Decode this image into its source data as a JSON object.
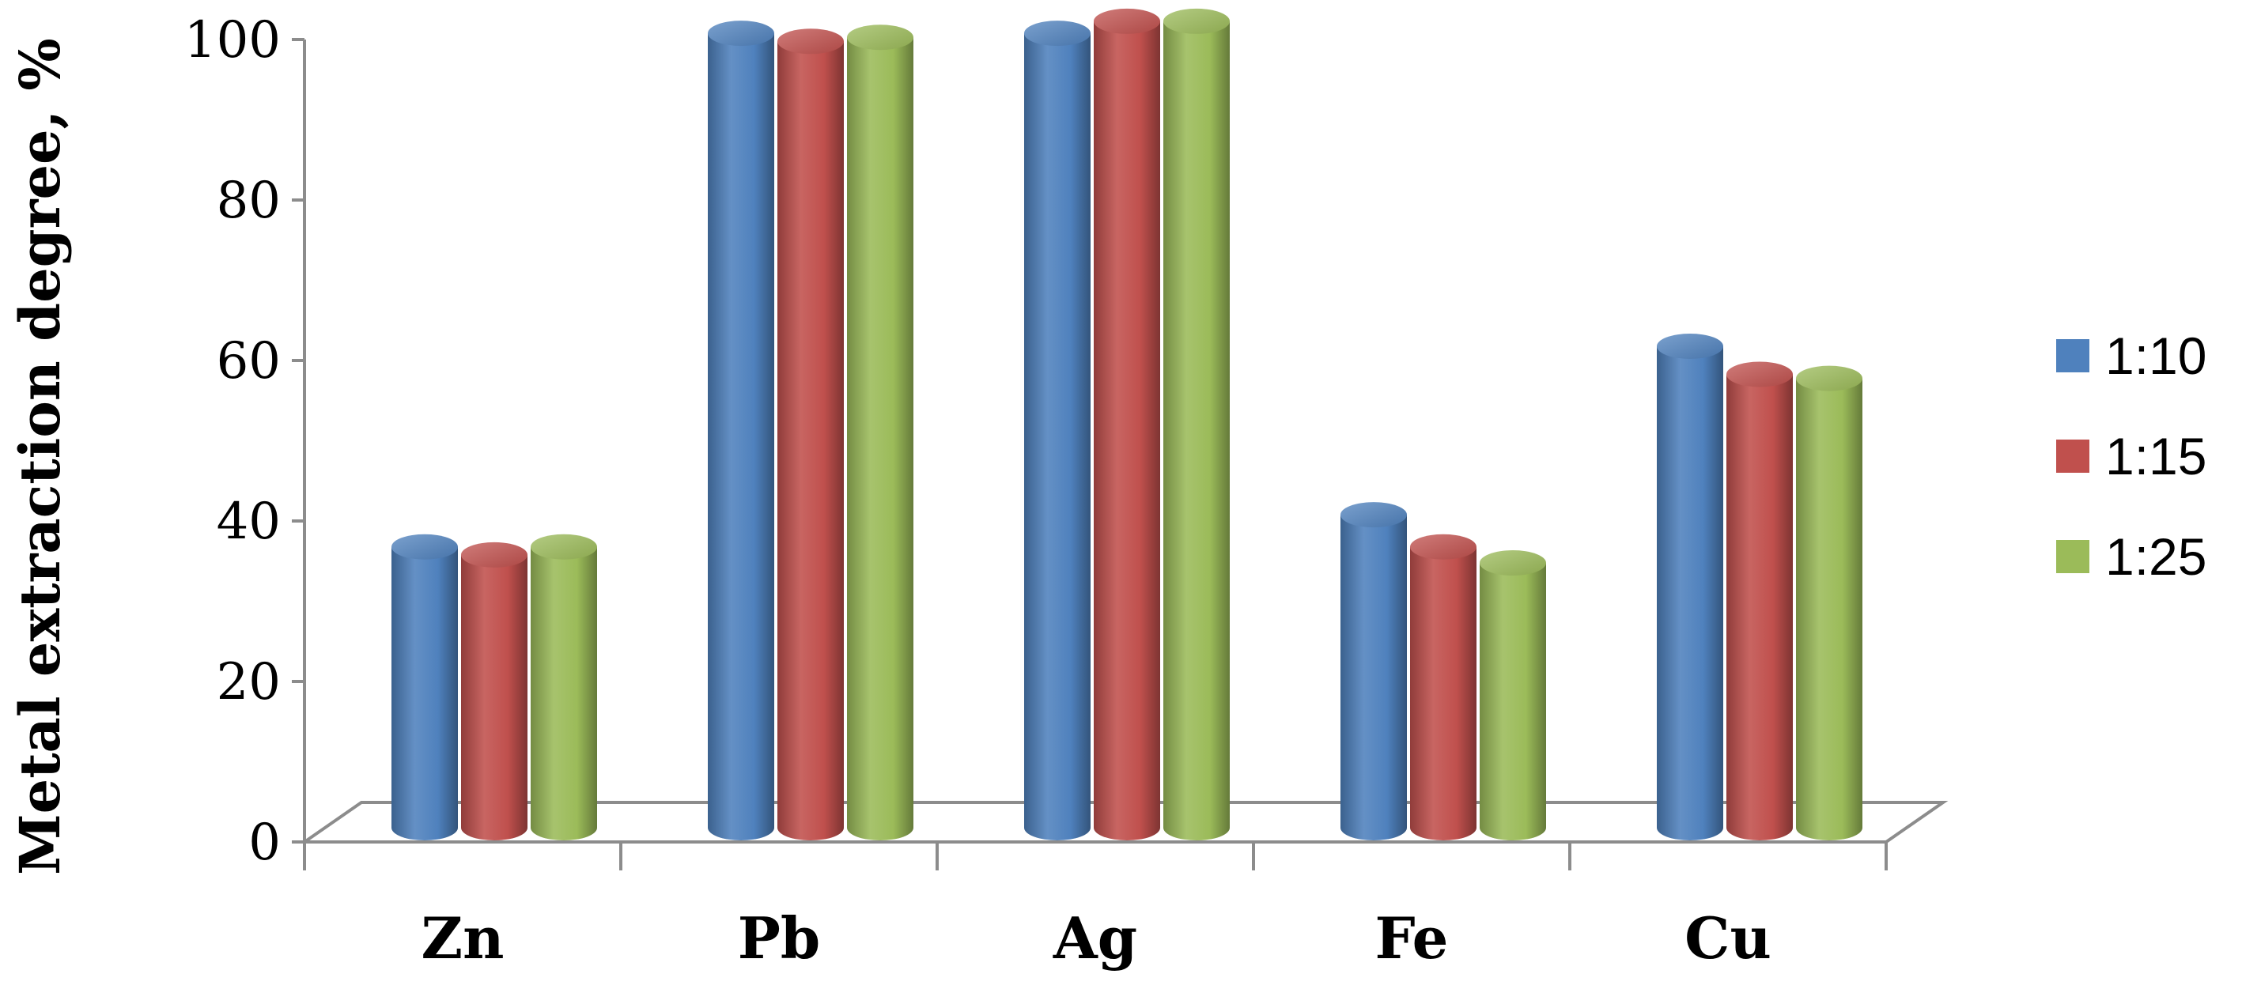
{
  "chart_data": {
    "type": "bar",
    "style": "3d-cylinder",
    "title": "",
    "xlabel": "",
    "ylabel": "Metal extraction degree, %",
    "ylim": [
      0,
      100
    ],
    "yticks": [
      0,
      20,
      40,
      60,
      80,
      100
    ],
    "grid": false,
    "legend_position": "right",
    "categories": [
      "Zn",
      "Pb",
      "Ag",
      "Fe",
      "Cu"
    ],
    "series": [
      {
        "name": "1:10",
        "color": "#4f81bd",
        "values": [
          35,
          99,
          99,
          39,
          60
        ]
      },
      {
        "name": "1:15",
        "color": "#c0504d",
        "values": [
          34,
          98,
          100.5,
          35,
          56.5
        ]
      },
      {
        "name": "1:25",
        "color": "#9bbb59",
        "values": [
          35,
          98.5,
          100.5,
          33,
          56
        ]
      }
    ]
  }
}
